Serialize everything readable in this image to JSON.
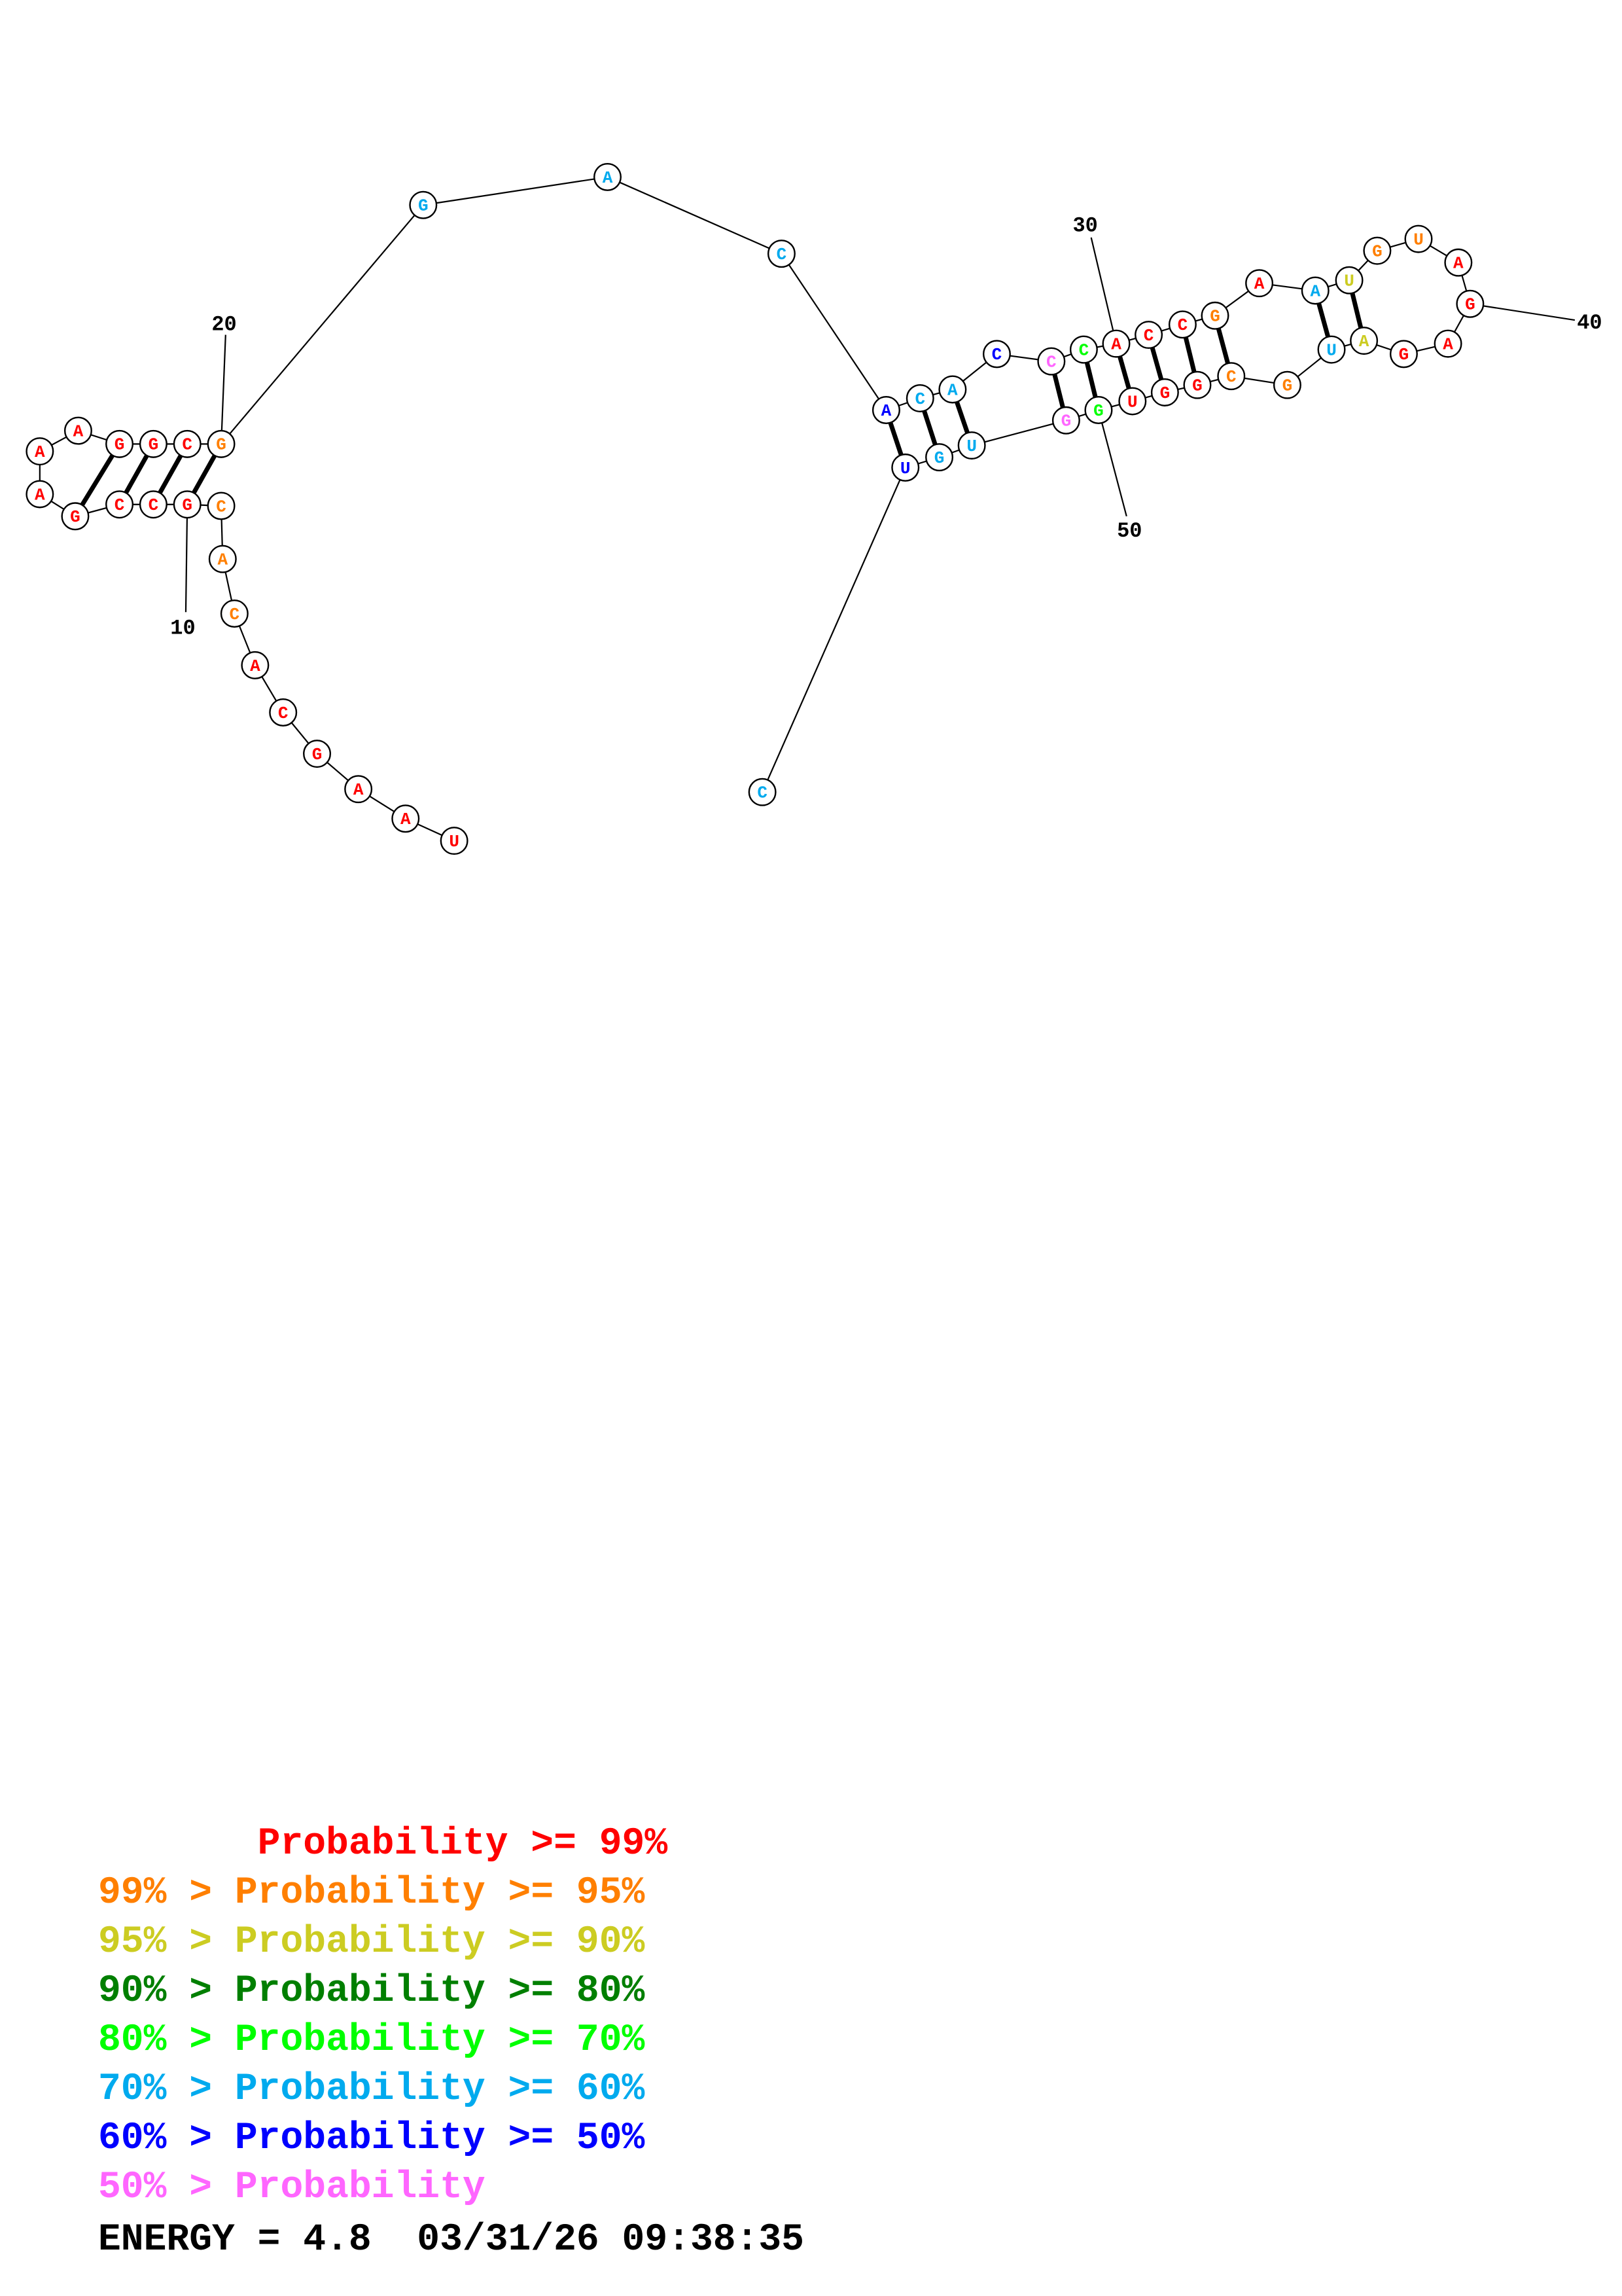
{
  "colors": {
    "p99": "#ff0000",
    "p95": "#ff7f00",
    "p90": "#cccc22",
    "p80": "#007f00",
    "p70": "#00ff00",
    "p60": "#00aaee",
    "p50": "#0000ff",
    "p00": "#ff66ff",
    "outline": "#000000"
  },
  "diagram": {
    "nucleotides": [
      {
        "base": "U",
        "color": "p99"
      },
      {
        "base": "A",
        "color": "p99"
      },
      {
        "base": "A",
        "color": "p99"
      },
      {
        "base": "G",
        "color": "p99"
      },
      {
        "base": "C",
        "color": "p99"
      },
      {
        "base": "A",
        "color": "p99"
      },
      {
        "base": "C",
        "color": "p95"
      },
      {
        "base": "A",
        "color": "p95"
      },
      {
        "base": "C",
        "color": "p95"
      },
      {
        "base": "G",
        "color": "p99"
      },
      {
        "base": "C",
        "color": "p99"
      },
      {
        "base": "C",
        "color": "p99"
      },
      {
        "base": "G",
        "color": "p99"
      },
      {
        "base": "A",
        "color": "p99"
      },
      {
        "base": "A",
        "color": "p99"
      },
      {
        "base": "A",
        "color": "p99"
      },
      {
        "base": "G",
        "color": "p99"
      },
      {
        "base": "G",
        "color": "p99"
      },
      {
        "base": "C",
        "color": "p99"
      },
      {
        "base": "G",
        "color": "p95"
      },
      {
        "base": "G",
        "color": "p60"
      },
      {
        "base": "A",
        "color": "p60"
      },
      {
        "base": "C",
        "color": "p60"
      },
      {
        "base": "A",
        "color": "p50"
      },
      {
        "base": "C",
        "color": "p60"
      },
      {
        "base": "A",
        "color": "p60"
      },
      {
        "base": "C",
        "color": "p50"
      },
      {
        "base": "C",
        "color": "p00"
      },
      {
        "base": "C",
        "color": "p70"
      },
      {
        "base": "A",
        "color": "p99"
      },
      {
        "base": "C",
        "color": "p99"
      },
      {
        "base": "C",
        "color": "p99"
      },
      {
        "base": "G",
        "color": "p95"
      },
      {
        "base": "A",
        "color": "p99"
      },
      {
        "base": "A",
        "color": "p60"
      },
      {
        "base": "U",
        "color": "p90"
      },
      {
        "base": "G",
        "color": "p95"
      },
      {
        "base": "U",
        "color": "p95"
      },
      {
        "base": "A",
        "color": "p99"
      },
      {
        "base": "G",
        "color": "p99"
      },
      {
        "base": "A",
        "color": "p99"
      },
      {
        "base": "G",
        "color": "p99"
      },
      {
        "base": "A",
        "color": "p90"
      },
      {
        "base": "U",
        "color": "p60"
      },
      {
        "base": "G",
        "color": "p95"
      },
      {
        "base": "C",
        "color": "p95"
      },
      {
        "base": "G",
        "color": "p99"
      },
      {
        "base": "G",
        "color": "p99"
      },
      {
        "base": "U",
        "color": "p99"
      },
      {
        "base": "G",
        "color": "p70"
      },
      {
        "base": "G",
        "color": "p00"
      },
      {
        "base": "U",
        "color": "p60"
      },
      {
        "base": "G",
        "color": "p60"
      },
      {
        "base": "U",
        "color": "p50"
      },
      {
        "base": "C",
        "color": "p60"
      }
    ],
    "pairs": [
      [
        10,
        20
      ],
      [
        11,
        19
      ],
      [
        12,
        18
      ],
      [
        13,
        17
      ],
      [
        24,
        54
      ],
      [
        25,
        53
      ],
      [
        26,
        52
      ],
      [
        28,
        51
      ],
      [
        29,
        50
      ],
      [
        30,
        49
      ],
      [
        31,
        48
      ],
      [
        32,
        47
      ],
      [
        33,
        46
      ],
      [
        35,
        44
      ],
      [
        36,
        43
      ]
    ],
    "tick_labels": [
      {
        "text": "10",
        "nt": 10
      },
      {
        "text": "20",
        "nt": 20
      },
      {
        "text": "30",
        "nt": 30
      },
      {
        "text": "40",
        "nt": 40
      },
      {
        "text": "50",
        "nt": 50
      }
    ]
  },
  "legend": [
    {
      "prefix": "       ",
      "label": "Probability >= 99%",
      "color": "p99"
    },
    {
      "prefix": "99% > ",
      "label": "Probability >= 95%",
      "color": "p95"
    },
    {
      "prefix": "95% > ",
      "label": "Probability >= 90%",
      "color": "p90"
    },
    {
      "prefix": "90% > ",
      "label": "Probability >= 80%",
      "color": "p80"
    },
    {
      "prefix": "80% > ",
      "label": "Probability >= 70%",
      "color": "p70"
    },
    {
      "prefix": "70% > ",
      "label": "Probability >= 60%",
      "color": "p60"
    },
    {
      "prefix": "60% > ",
      "label": "Probability >= 50%",
      "color": "p50"
    },
    {
      "prefix": "50% > ",
      "label": "Probability",
      "color": "p00"
    }
  ],
  "footer": {
    "energy_text": "ENERGY = 4.8  03/31/26 09:38:35"
  }
}
